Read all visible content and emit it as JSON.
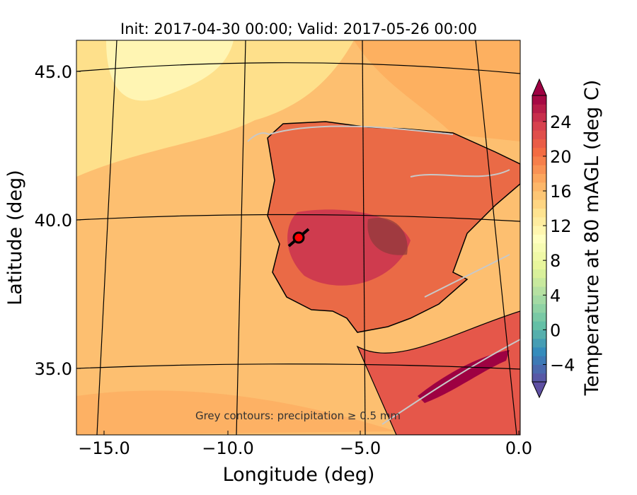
{
  "chart_data": {
    "type": "heatmap",
    "title": "Init: 2017-04-30 00:00; Valid: 2017-05-26 00:00",
    "xlabel": "Longitude (deg)",
    "ylabel": "Latitude (deg)",
    "xlim": [
      -16,
      0.1
    ],
    "x_ticks": [
      -15.0,
      -10.0,
      -5.0,
      0.0
    ],
    "x_tick_labels": [
      "−15.0",
      "−10.0",
      "−5.0",
      "0.0"
    ],
    "y_ticks": [
      45.0,
      40.0,
      35.0
    ],
    "y_tick_labels": [
      "45.0",
      "40.0",
      "35.0"
    ],
    "annotation": "Grey contours: precipitation ≥ 0.5 mm",
    "colorbar": {
      "label": "Temperature at 80 mAGL (deg C)",
      "min": -6,
      "max": 27,
      "step": 1,
      "ticks": [
        -4,
        0,
        4,
        8,
        12,
        16,
        20,
        24
      ],
      "tick_labels": [
        "−4",
        "0",
        "4",
        "8",
        "12",
        "16",
        "20",
        "24"
      ],
      "extend": "both",
      "colormap": "Spectral_r"
    },
    "marker": {
      "lon": -7.6,
      "lat": 39.3,
      "color": "#ff0000"
    },
    "colors": {
      "sea": "#fdb96a",
      "north_sea": "#fff2a8",
      "land": "#ec6a47",
      "hot": "#b2184a",
      "precip": "#c8c8c8"
    }
  }
}
